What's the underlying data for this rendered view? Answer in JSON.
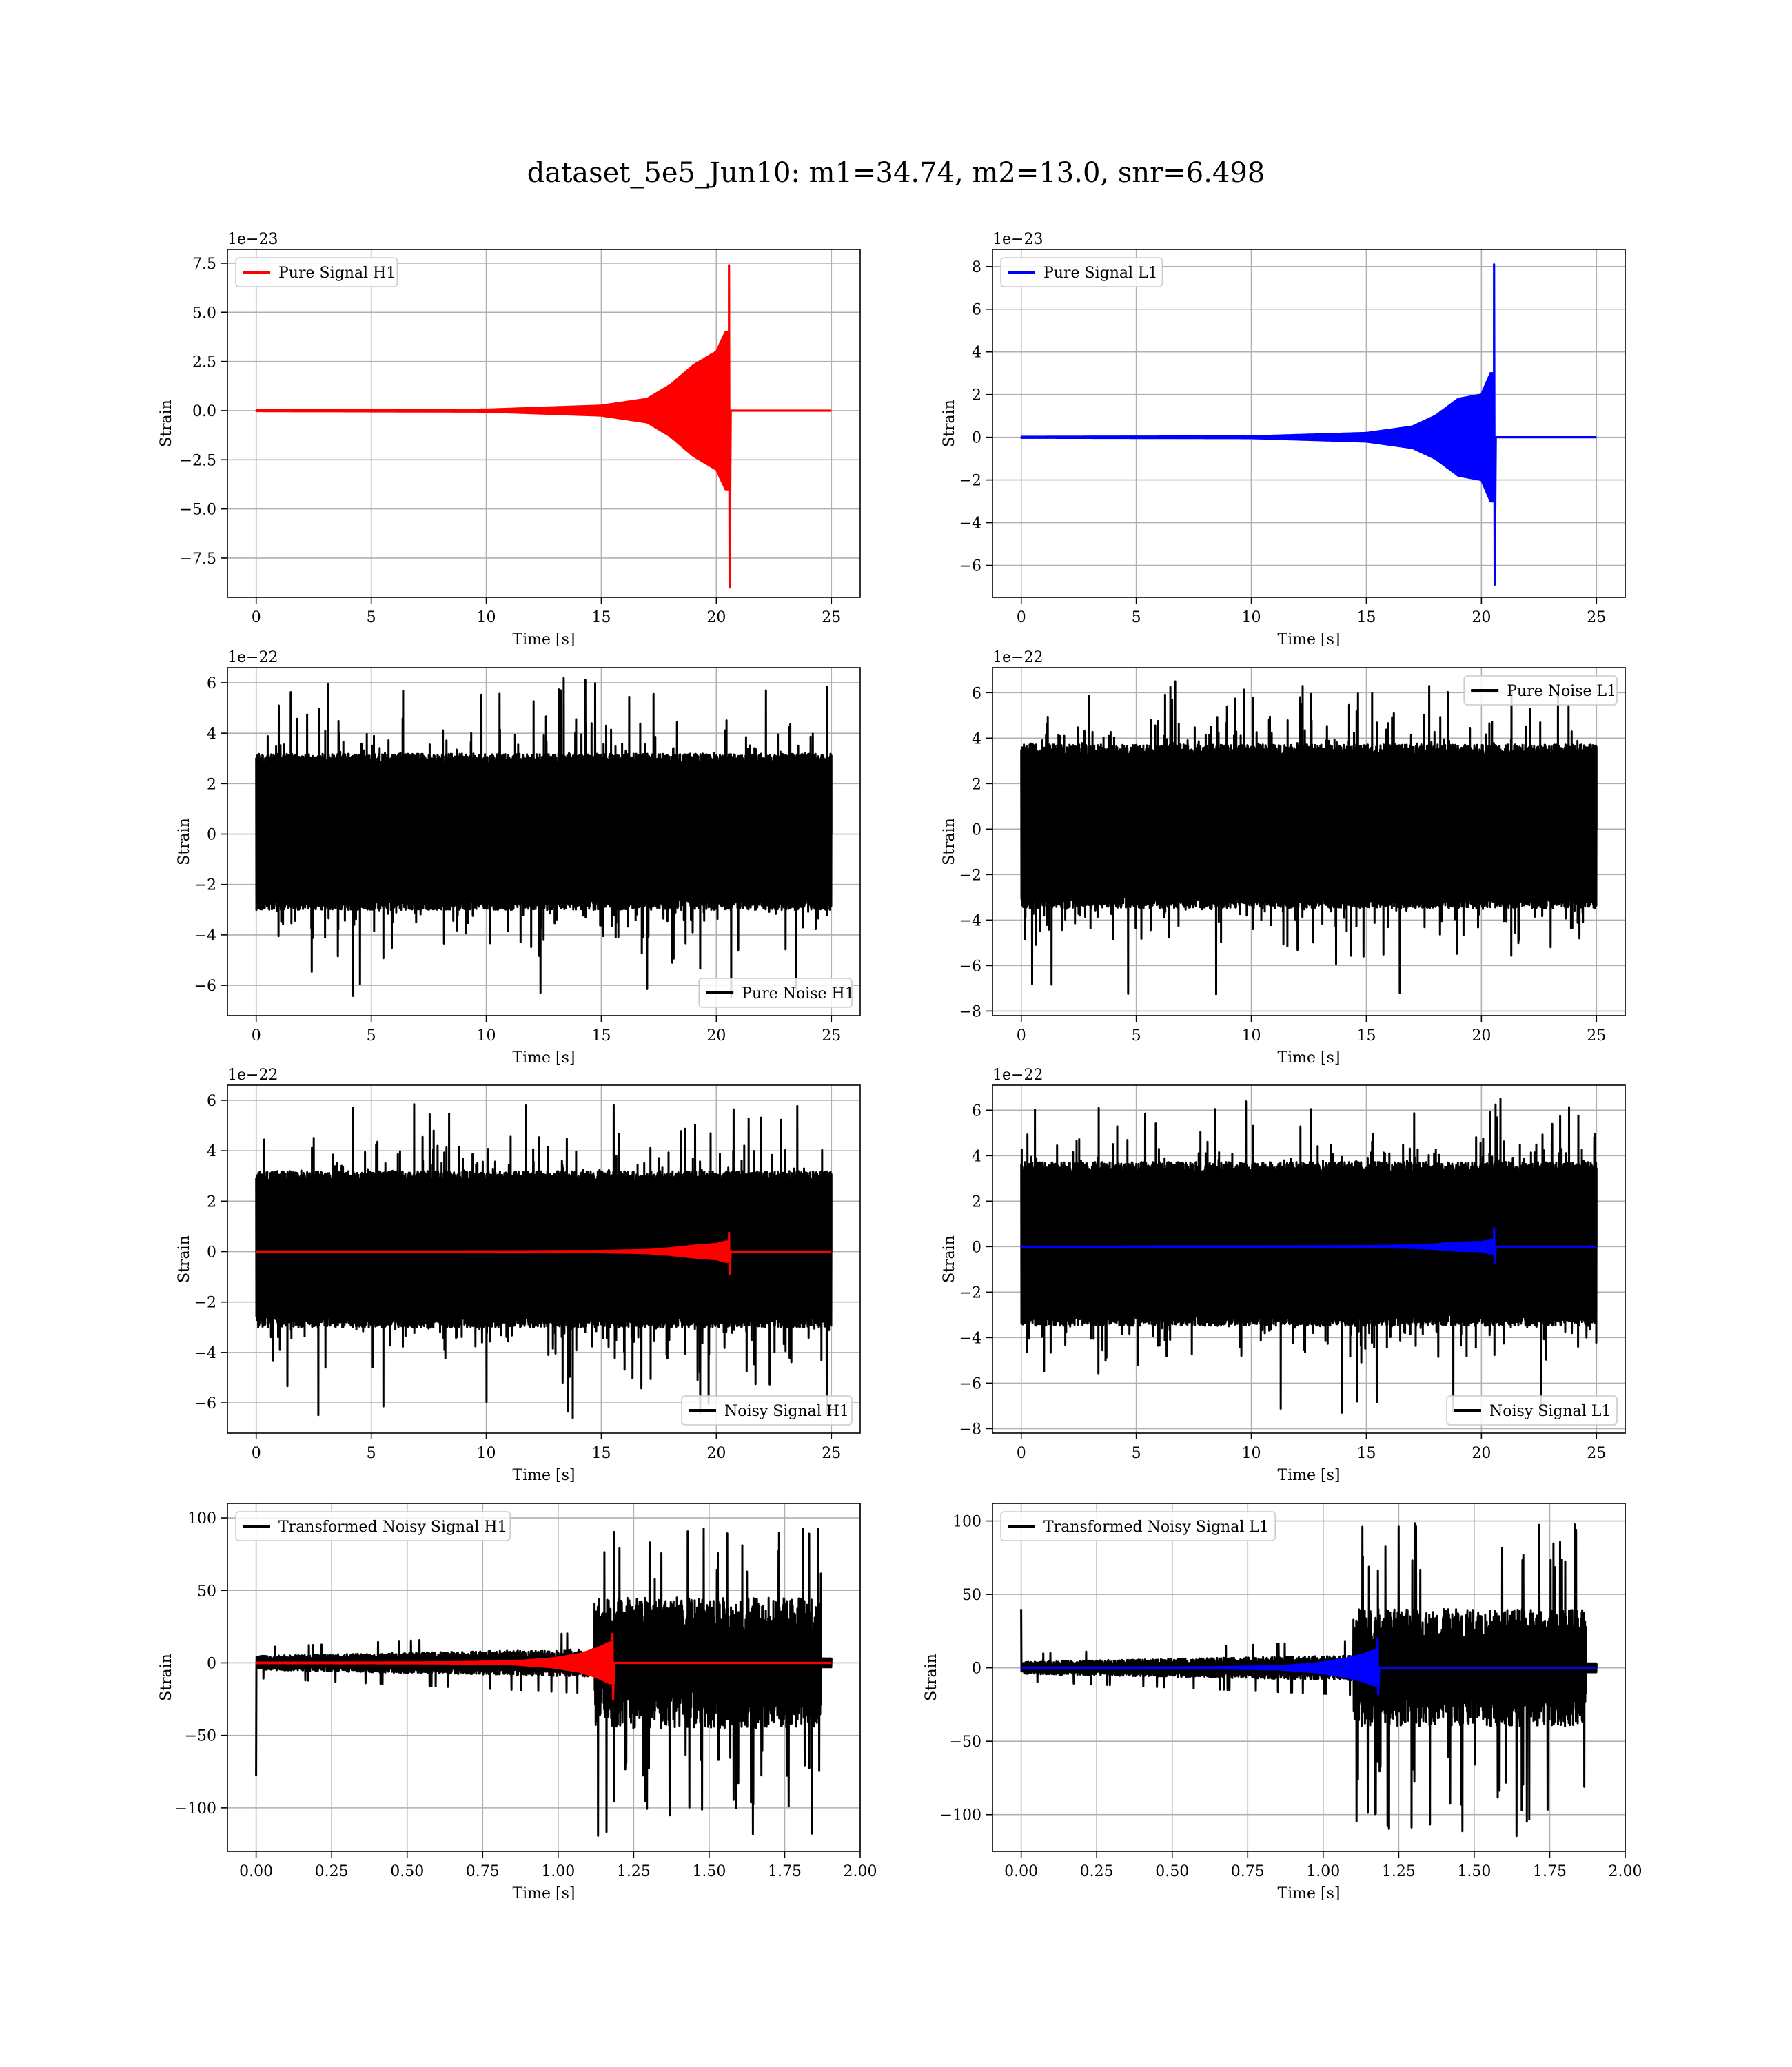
{
  "figure": {
    "title": "dataset_5e5_Jun10: m1=34.74, m2=13.0, snr=6.498"
  },
  "colors": {
    "h1": "#ff0000",
    "l1": "#0000ff",
    "noise": "#000000",
    "grid": "#b0b0b0"
  },
  "chart_data": [
    {
      "id": "pure-signal-h1",
      "type": "line",
      "title": "",
      "xlabel": "Time [s]",
      "ylabel": "Strain",
      "offset_label": "1e−23",
      "xlim": [
        -1.25,
        26.25
      ],
      "ylim": [
        -9.5,
        8.2
      ],
      "xticks": [
        0,
        5,
        10,
        15,
        20,
        25
      ],
      "xtick_labels": [
        "0",
        "5",
        "10",
        "15",
        "20",
        "25"
      ],
      "yticks": [
        -7.5,
        -5.0,
        -2.5,
        0.0,
        2.5,
        5.0,
        7.5
      ],
      "ytick_labels": [
        "−7.5",
        "−5.0",
        "−2.5",
        "0.0",
        "2.5",
        "5.0",
        "7.5"
      ],
      "grid": true,
      "legend_loc": "upper-left",
      "series": [
        {
          "name": "Pure Signal H1",
          "color": "#ff0000",
          "kind": "chirp",
          "xmin": 0,
          "xmax": 25,
          "merger": 20.55,
          "envelope": [
            [
              0,
              0.02
            ],
            [
              10,
              0.05
            ],
            [
              15,
              0.25
            ],
            [
              17,
              0.6
            ],
            [
              18,
              1.3
            ],
            [
              19,
              2.3
            ],
            [
              20,
              3.0
            ],
            [
              20.4,
              4.0
            ]
          ],
          "peak": 7.4,
          "trough": -9.0
        }
      ]
    },
    {
      "id": "pure-signal-l1",
      "type": "line",
      "title": "",
      "xlabel": "Time [s]",
      "ylabel": "Strain",
      "offset_label": "1e−23",
      "xlim": [
        -1.25,
        26.25
      ],
      "ylim": [
        -7.5,
        8.8
      ],
      "xticks": [
        0,
        5,
        10,
        15,
        20,
        25
      ],
      "xtick_labels": [
        "0",
        "5",
        "10",
        "15",
        "20",
        "25"
      ],
      "yticks": [
        -6,
        -4,
        -2,
        0,
        2,
        4,
        6,
        8
      ],
      "ytick_labels": [
        "−6",
        "−4",
        "−2",
        "0",
        "2",
        "4",
        "6",
        "8"
      ],
      "grid": true,
      "legend_loc": "upper-left",
      "series": [
        {
          "name": "Pure Signal L1",
          "color": "#0000ff",
          "kind": "chirp",
          "xmin": 0,
          "xmax": 25,
          "merger": 20.55,
          "envelope": [
            [
              0,
              0.02
            ],
            [
              10,
              0.04
            ],
            [
              15,
              0.2
            ],
            [
              17,
              0.5
            ],
            [
              18,
              1.0
            ],
            [
              19,
              1.8
            ],
            [
              20,
              2.0
            ],
            [
              20.4,
              3.0
            ]
          ],
          "peak": 8.1,
          "trough": -6.9
        }
      ]
    },
    {
      "id": "pure-noise-h1",
      "type": "line",
      "title": "",
      "xlabel": "Time [s]",
      "ylabel": "Strain",
      "offset_label": "1e−22",
      "xlim": [
        -1.25,
        26.25
      ],
      "ylim": [
        -7.2,
        6.6
      ],
      "xticks": [
        0,
        5,
        10,
        15,
        20,
        25
      ],
      "xtick_labels": [
        "0",
        "5",
        "10",
        "15",
        "20",
        "25"
      ],
      "yticks": [
        -6,
        -4,
        -2,
        0,
        2,
        4,
        6
      ],
      "ytick_labels": [
        "−6",
        "−4",
        "−2",
        "0",
        "2",
        "4",
        "6"
      ],
      "grid": true,
      "legend_loc": "lower-right",
      "series": [
        {
          "name": "Pure Noise H1",
          "color": "#000000",
          "kind": "noise",
          "xmin": 0,
          "xmax": 25,
          "core": [
            -2.8,
            3.4
          ],
          "max": 6.0,
          "min": -6.6
        }
      ]
    },
    {
      "id": "pure-noise-l1",
      "type": "line",
      "title": "",
      "xlabel": "Time [s]",
      "ylabel": "Strain",
      "offset_label": "1e−22",
      "xlim": [
        -1.25,
        26.25
      ],
      "ylim": [
        -8.2,
        7.1
      ],
      "xticks": [
        0,
        5,
        10,
        15,
        20,
        25
      ],
      "xtick_labels": [
        "0",
        "5",
        "10",
        "15",
        "20",
        "25"
      ],
      "yticks": [
        -8,
        -6,
        -4,
        -2,
        0,
        2,
        4,
        6
      ],
      "ytick_labels": [
        "−8",
        "−6",
        "−4",
        "−2",
        "0",
        "2",
        "4",
        "6"
      ],
      "grid": true,
      "legend_loc": "upper-right",
      "series": [
        {
          "name": "Pure Noise L1",
          "color": "#000000",
          "kind": "noise",
          "xmin": 0,
          "xmax": 25,
          "core": [
            -3.2,
            4.0
          ],
          "max": 6.5,
          "min": -7.5
        }
      ]
    },
    {
      "id": "noisy-signal-h1",
      "type": "line",
      "title": "",
      "xlabel": "Time [s]",
      "ylabel": "Strain",
      "offset_label": "1e−22",
      "xlim": [
        -1.25,
        26.25
      ],
      "ylim": [
        -7.2,
        6.6
      ],
      "xticks": [
        0,
        5,
        10,
        15,
        20,
        25
      ],
      "xtick_labels": [
        "0",
        "5",
        "10",
        "15",
        "20",
        "25"
      ],
      "yticks": [
        -6,
        -4,
        -2,
        0,
        2,
        4,
        6
      ],
      "ytick_labels": [
        "−6",
        "−4",
        "−2",
        "0",
        "2",
        "4",
        "6"
      ],
      "grid": true,
      "legend_loc": "lower-right",
      "series": [
        {
          "name": "Noisy Signal H1",
          "color": "#000000",
          "kind": "noise",
          "xmin": 0,
          "xmax": 25,
          "core": [
            -2.8,
            3.4
          ],
          "max": 6.0,
          "min": -6.6
        },
        {
          "name": "",
          "color": "#ff0000",
          "kind": "chirp",
          "xmin": 0,
          "xmax": 25,
          "merger": 20.55,
          "envelope": [
            [
              0,
              0.002
            ],
            [
              10,
              0.005
            ],
            [
              15,
              0.025
            ],
            [
              17,
              0.06
            ],
            [
              18,
              0.13
            ],
            [
              19,
              0.23
            ],
            [
              20,
              0.3
            ],
            [
              20.4,
              0.4
            ]
          ],
          "peak": 0.74,
          "trough": -0.9
        }
      ]
    },
    {
      "id": "noisy-signal-l1",
      "type": "line",
      "title": "",
      "xlabel": "Time [s]",
      "ylabel": "Strain",
      "offset_label": "1e−22",
      "xlim": [
        -1.25,
        26.25
      ],
      "ylim": [
        -8.2,
        7.1
      ],
      "xticks": [
        0,
        5,
        10,
        15,
        20,
        25
      ],
      "xtick_labels": [
        "0",
        "5",
        "10",
        "15",
        "20",
        "25"
      ],
      "yticks": [
        -8,
        -6,
        -4,
        -2,
        0,
        2,
        4,
        6
      ],
      "ytick_labels": [
        "−8",
        "−6",
        "−4",
        "−2",
        "0",
        "2",
        "4",
        "6"
      ],
      "grid": true,
      "legend_loc": "lower-right",
      "series": [
        {
          "name": "Noisy Signal L1",
          "color": "#000000",
          "kind": "noise",
          "xmin": 0,
          "xmax": 25,
          "core": [
            -3.2,
            4.0
          ],
          "max": 6.5,
          "min": -7.5
        },
        {
          "name": "",
          "color": "#0000ff",
          "kind": "chirp",
          "xmin": 0,
          "xmax": 25,
          "merger": 20.55,
          "envelope": [
            [
              0,
              0.002
            ],
            [
              10,
              0.004
            ],
            [
              15,
              0.02
            ],
            [
              17,
              0.05
            ],
            [
              18,
              0.1
            ],
            [
              19,
              0.18
            ],
            [
              20,
              0.2
            ],
            [
              20.4,
              0.3
            ]
          ],
          "peak": 0.81,
          "trough": -0.69
        }
      ]
    },
    {
      "id": "transformed-noisy-signal-h1",
      "type": "line",
      "title": "",
      "xlabel": "Time [s]",
      "ylabel": "Strain",
      "offset_label": "",
      "xlim": [
        -0.095,
        2.0
      ],
      "ylim": [
        -130,
        110
      ],
      "xticks": [
        0.0,
        0.25,
        0.5,
        0.75,
        1.0,
        1.25,
        1.5,
        1.75,
        2.0
      ],
      "xtick_labels": [
        "0.00",
        "0.25",
        "0.50",
        "0.75",
        "1.00",
        "1.25",
        "1.50",
        "1.75",
        "2.00"
      ],
      "yticks": [
        -100,
        -50,
        0,
        50,
        100
      ],
      "ytick_labels": [
        "−100",
        "−50",
        "0",
        "50",
        "100"
      ],
      "grid": true,
      "legend_loc": "upper-left",
      "series": [
        {
          "name": "Transformed Noisy Signal H1",
          "color": "#000000",
          "kind": "tnoise",
          "xmin": 0,
          "xmax": 1.905,
          "quiet_end": 1.12,
          "quiet_amp": 8,
          "loud_amp": 45,
          "max": 95,
          "min": -120,
          "start_spike": -78,
          "end": 1.87
        },
        {
          "name": "",
          "color": "#ff0000",
          "kind": "chirp",
          "xmin": 0,
          "xmax": 1.905,
          "merger": 1.18,
          "envelope": [
            [
              0,
              0.1
            ],
            [
              0.6,
              0.3
            ],
            [
              0.85,
              1.0
            ],
            [
              0.98,
              3.0
            ],
            [
              1.07,
              6.0
            ],
            [
              1.13,
              10.0
            ],
            [
              1.17,
              14.0
            ]
          ],
          "peak": 20,
          "trough": -25
        }
      ]
    },
    {
      "id": "transformed-noisy-signal-l1",
      "type": "line",
      "title": "",
      "xlabel": "Time [s]",
      "ylabel": "Strain",
      "offset_label": "",
      "xlim": [
        -0.095,
        2.0
      ],
      "ylim": [
        -125,
        112
      ],
      "xticks": [
        0.0,
        0.25,
        0.5,
        0.75,
        1.0,
        1.25,
        1.5,
        1.75,
        2.0
      ],
      "xtick_labels": [
        "0.00",
        "0.25",
        "0.50",
        "0.75",
        "1.00",
        "1.25",
        "1.50",
        "1.75",
        "2.00"
      ],
      "yticks": [
        -100,
        -50,
        0,
        50,
        100
      ],
      "ytick_labels": [
        "−100",
        "−50",
        "0",
        "50",
        "100"
      ],
      "grid": true,
      "legend_loc": "upper-left",
      "series": [
        {
          "name": "Transformed Noisy Signal L1",
          "color": "#000000",
          "kind": "tnoise",
          "xmin": 0,
          "xmax": 1.905,
          "quiet_end": 1.1,
          "quiet_amp": 7,
          "loud_amp": 40,
          "max": 100,
          "min": -115,
          "start_spike": 40,
          "end": 1.87
        },
        {
          "name": "",
          "color": "#0000ff",
          "kind": "chirp",
          "xmin": 0,
          "xmax": 1.905,
          "merger": 1.18,
          "envelope": [
            [
              0,
              0.1
            ],
            [
              0.6,
              0.3
            ],
            [
              0.85,
              1.0
            ],
            [
              0.98,
              3.0
            ],
            [
              1.07,
              6.0
            ],
            [
              1.13,
              9.0
            ],
            [
              1.17,
              12.0
            ]
          ],
          "peak": 20,
          "trough": -18
        }
      ]
    }
  ]
}
